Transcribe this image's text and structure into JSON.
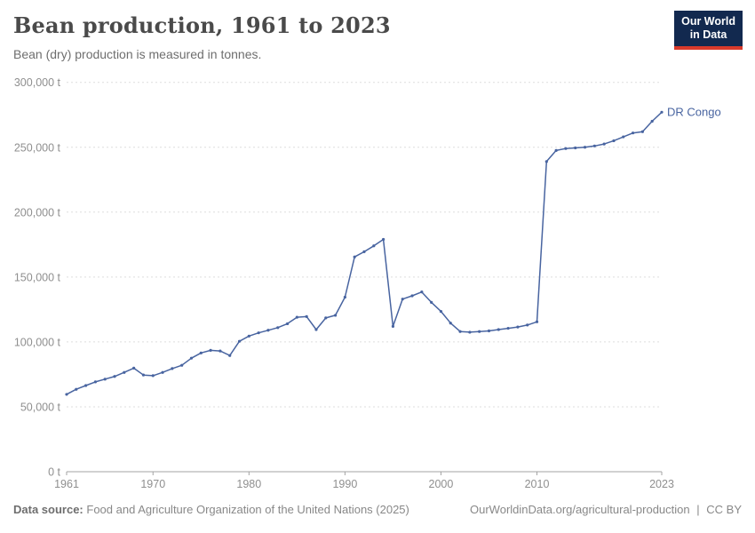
{
  "header": {
    "title": "Bean production, 1961 to 2023",
    "subtitle": "Bean (dry) production is measured in tonnes."
  },
  "logo": {
    "line1": "Our World",
    "line2": "in Data",
    "bg_color": "#12294f",
    "bar_color": "#d93a2b"
  },
  "chart_data": {
    "type": "line",
    "title": "Bean production, 1961 to 2023",
    "unit": "t",
    "xlim": [
      1961,
      2023
    ],
    "ylim": [
      0,
      300000
    ],
    "grid": "horizontal-dashed",
    "legend_position": "end-of-line-label",
    "x_ticks": [
      1961,
      1970,
      1980,
      1990,
      2000,
      2010,
      2023
    ],
    "x_tick_labels": [
      "1961",
      "1970",
      "1980",
      "1990",
      "2000",
      "2010",
      "2023"
    ],
    "y_ticks": [
      0,
      50000,
      100000,
      150000,
      200000,
      250000,
      300000
    ],
    "y_tick_labels": [
      "0 t",
      "50,000 t",
      "100,000 t",
      "150,000 t",
      "200,000 t",
      "250,000 t",
      "300,000 t"
    ],
    "series": [
      {
        "name": "DR Congo",
        "color": "#4864a0",
        "years": [
          1961,
          1962,
          1963,
          1964,
          1965,
          1966,
          1967,
          1968,
          1969,
          1970,
          1971,
          1972,
          1973,
          1974,
          1975,
          1976,
          1977,
          1978,
          1979,
          1980,
          1981,
          1982,
          1983,
          1984,
          1985,
          1986,
          1987,
          1988,
          1989,
          1990,
          1991,
          1992,
          1993,
          1994,
          1995,
          1996,
          1997,
          1998,
          1999,
          2000,
          2001,
          2002,
          2003,
          2004,
          2005,
          2006,
          2007,
          2008,
          2009,
          2010,
          2011,
          2012,
          2013,
          2014,
          2015,
          2016,
          2017,
          2018,
          2019,
          2020,
          2021,
          2022,
          2023
        ],
        "values": [
          59600,
          63500,
          66400,
          69200,
          71300,
          73400,
          76500,
          79800,
          74500,
          74000,
          76500,
          79500,
          82000,
          87500,
          91500,
          93500,
          93000,
          89500,
          100500,
          104500,
          107000,
          109000,
          111000,
          114000,
          119000,
          119500,
          109500,
          118500,
          120500,
          134500,
          165500,
          169500,
          174000,
          179000,
          112000,
          133000,
          135500,
          138500,
          130500,
          123500,
          114500,
          108000,
          107500,
          108000,
          108500,
          109500,
          110500,
          111500,
          113000,
          115500,
          239000,
          247500,
          249000,
          249500,
          250000,
          251000,
          252500,
          255000,
          258000,
          261000,
          262000,
          270000,
          277000
        ]
      }
    ],
    "colors": {
      "gridline": "#dedede",
      "axis": "#a3a3a3",
      "tick_label": "#8f8f8f"
    }
  },
  "footer": {
    "source_label": "Data source:",
    "source_text": "Food and Agriculture Organization of the United Nations (2025)",
    "link": "OurWorldinData.org/agricultural-production",
    "separator": "|",
    "license": "CC BY"
  }
}
